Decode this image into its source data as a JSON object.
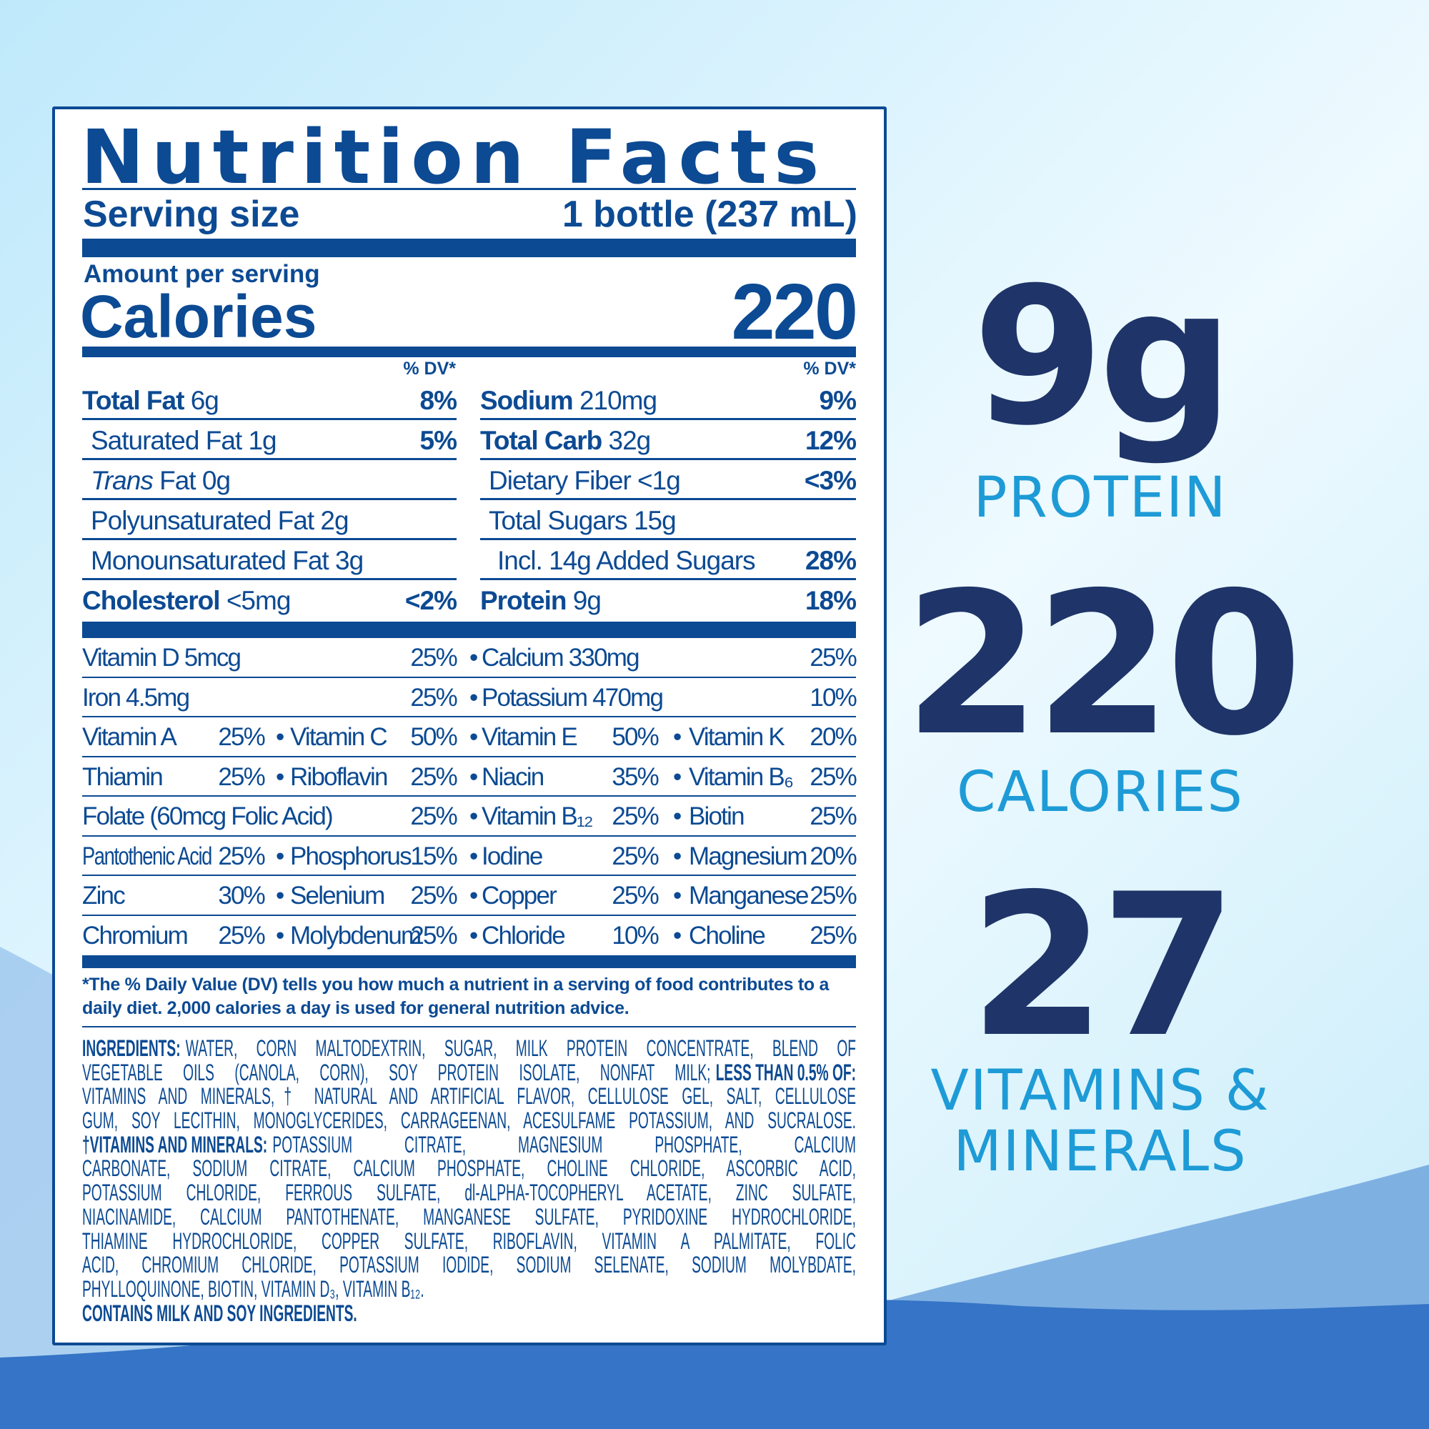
{
  "colors": {
    "label": "#0c4a93",
    "headline": "#1f3468",
    "accent": "#1e9bd6",
    "wave": "#3574c6"
  },
  "label": {
    "title": "Nutrition Facts",
    "serving_label": "Serving size",
    "serving_value": "1 bottle (237 mL)",
    "amount_per_serving": "Amount per serving",
    "calories_label": "Calories",
    "calories_value": "220",
    "dv_header": "% DV*",
    "left_rows": [
      {
        "bold": "Total Fat",
        "text": " 6g",
        "dv": "8%",
        "indent": 0
      },
      {
        "bold": "",
        "text": "Saturated Fat 1g",
        "dv": "5%",
        "indent": 1
      },
      {
        "bold": "",
        "italic": "Trans",
        "text": " Fat 0g",
        "dv": "",
        "indent": 1
      },
      {
        "bold": "",
        "text": "Polyunsaturated Fat 2g",
        "dv": "",
        "indent": 1
      },
      {
        "bold": "",
        "text": "Monounsaturated Fat 3g",
        "dv": "",
        "indent": 1
      },
      {
        "bold": "Cholesterol",
        "text": " <5mg",
        "dv": "<2%",
        "indent": 0
      }
    ],
    "right_rows": [
      {
        "bold": "Sodium",
        "text": " 210mg",
        "dv": "9%",
        "indent": 0
      },
      {
        "bold": "Total Carb",
        "text": " 32g",
        "dv": "12%",
        "indent": 0
      },
      {
        "bold": "",
        "text": "Dietary Fiber <1g",
        "dv": "<3%",
        "indent": 1
      },
      {
        "bold": "",
        "text": "Total Sugars 15g",
        "dv": "",
        "indent": 1
      },
      {
        "bold": "",
        "text": "Incl. 14g Added Sugars",
        "dv": "28%",
        "indent": 2
      },
      {
        "bold": "Protein",
        "text": " 9g",
        "dv": "18%",
        "indent": 0
      }
    ],
    "vitamin_rows": [
      [
        {
          "name": "Vitamin D 5mcg",
          "dv": "25%"
        },
        {
          "name": "Calcium 330mg",
          "dv": "25%"
        }
      ],
      [
        {
          "name": "Iron 4.5mg",
          "dv": "25%"
        },
        {
          "name": "Potassium 470mg",
          "dv": "10%"
        }
      ],
      [
        {
          "name": "Vitamin A",
          "dv": "25%"
        },
        {
          "name": "Vitamin C",
          "dv": "50%"
        },
        {
          "name": "Vitamin E",
          "dv": "50%"
        },
        {
          "name": "Vitamin K",
          "dv": "20%"
        }
      ],
      [
        {
          "name": "Thiamin",
          "dv": "25%"
        },
        {
          "name": "Riboflavin",
          "dv": "25%"
        },
        {
          "name": "Niacin",
          "dv": "35%"
        },
        {
          "name": "Vitamin B₆",
          "dv": "25%"
        }
      ],
      [
        {
          "name": "Folate (60mcg Folic Acid)",
          "dv": "25%"
        },
        {
          "name": "Vitamin B₁₂",
          "dv": "25%"
        },
        {
          "name": "Biotin",
          "dv": "25%"
        }
      ],
      [
        {
          "name": "Pantothenic Acid",
          "dv": "25%"
        },
        {
          "name": "Phosphorus",
          "dv": "15%"
        },
        {
          "name": "Iodine",
          "dv": "25%"
        },
        {
          "name": "Magnesium",
          "dv": "20%"
        }
      ],
      [
        {
          "name": "Zinc",
          "dv": "30%"
        },
        {
          "name": "Selenium",
          "dv": "25%"
        },
        {
          "name": "Copper",
          "dv": "25%"
        },
        {
          "name": "Manganese",
          "dv": "25%"
        }
      ],
      [
        {
          "name": "Chromium",
          "dv": "25%"
        },
        {
          "name": "Molybdenum",
          "dv": "25%"
        },
        {
          "name": "Chloride",
          "dv": "10%"
        },
        {
          "name": "Choline",
          "dv": "25%"
        }
      ]
    ],
    "bullet": "•",
    "footnote": "*The % Daily Value (DV) tells you how much a nutrient in a serving of food contributes to a daily diet. 2,000 calories a day is used for general nutrition advice.",
    "ingredients_lines": [
      [
        {
          "t": "INGREDIENTS:",
          "b": true
        },
        {
          "t": "WATER, CORN MALTODEXTRIN, SUGAR, MILK PROTEIN CONCENTRATE, BLEND OF"
        }
      ],
      [
        {
          "t": "VEGETABLE OILS (CANOLA, CORN), SOY PROTEIN ISOLATE, NONFAT MILK;"
        },
        {
          "t": "LESS THAN 0.5% OF:",
          "b": true
        }
      ],
      [
        {
          "t": "VITAMINS AND MINERALS,† NATURAL AND ARTIFICIAL FLAVOR, CELLULOSE GEL, SALT, CELLULOSE"
        }
      ],
      [
        {
          "t": "GUM, SOY LECITHIN, MONOGLYCERIDES, CARRAGEENAN, ACESULFAME POTASSIUM, AND SUCRALOSE."
        }
      ],
      [
        {
          "t": "†VITAMINS AND MINERALS:",
          "b": true
        },
        {
          "t": "POTASSIUM CITRATE, MAGNESIUM PHOSPHATE, CALCIUM"
        }
      ],
      [
        {
          "t": "CARBONATE, SODIUM CITRATE, CALCIUM PHOSPHATE, CHOLINE CHLORIDE, ASCORBIC ACID,"
        }
      ],
      [
        {
          "t": "POTASSIUM CHLORIDE, FERROUS SULFATE, dl-ALPHA-TOCOPHERYL ACETATE, ZINC SULFATE,"
        }
      ],
      [
        {
          "t": "NIACINAMIDE, CALCIUM PANTOTHENATE, MANGANESE SULFATE, PYRIDOXINE HYDROCHLORIDE,"
        }
      ],
      [
        {
          "t": "THIAMINE HYDROCHLORIDE, COPPER SULFATE, RIBOFLAVIN, VITAMIN A PALMITATE, FOLIC"
        }
      ],
      [
        {
          "t": "ACID, CHROMIUM CHLORIDE, POTASSIUM IODIDE, SODIUM SELENATE, SODIUM MOLYBDATE,"
        }
      ],
      [
        {
          "t": "PHYLLOQUINONE, BIOTIN, VITAMIN D₃, VITAMIN B₁₂."
        }
      ],
      [
        {
          "t": "CONTAINS MILK AND SOY INGREDIENTS.",
          "b": true
        }
      ]
    ]
  },
  "highlights": [
    {
      "value": "9g",
      "label": "PROTEIN"
    },
    {
      "value": "220",
      "label": "CALORIES"
    },
    {
      "value": "27",
      "label": "VITAMINS &",
      "label2": "MINERALS"
    }
  ]
}
